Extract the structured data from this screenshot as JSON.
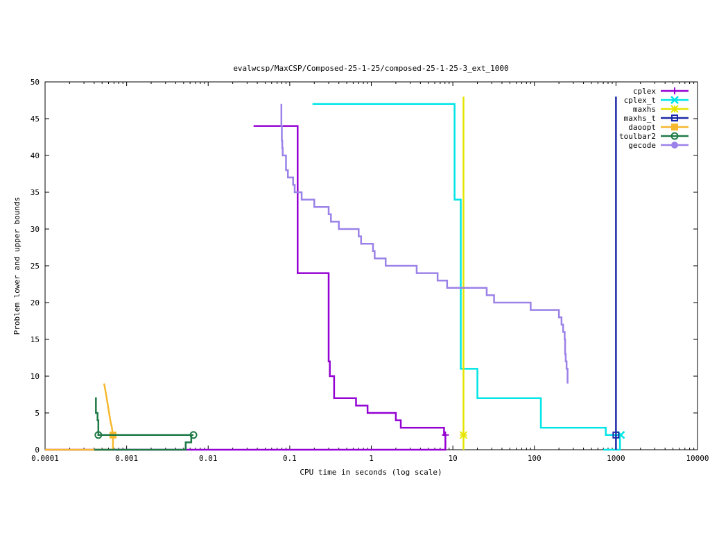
{
  "chart_data": {
    "type": "line",
    "title": "evalwcsp/MaxCSP/Composed-25-1-25/composed-25-1-25-3_ext_1000",
    "xlabel": "CPU time in seconds (log scale)",
    "ylabel": "Problem lower and upper bounds",
    "xscale": "log",
    "xlim": [
      0.0001,
      10000
    ],
    "ylim": [
      0,
      50
    ],
    "xticks": [
      {
        "value": 0.0001,
        "label": "0.0001"
      },
      {
        "value": 0.001,
        "label": "0.001"
      },
      {
        "value": 0.01,
        "label": "0.01"
      },
      {
        "value": 0.1,
        "label": "0.1"
      },
      {
        "value": 1,
        "label": "1"
      },
      {
        "value": 10,
        "label": "10"
      },
      {
        "value": 100,
        "label": "100"
      },
      {
        "value": 1000,
        "label": "1000"
      },
      {
        "value": 10000,
        "label": "10000"
      }
    ],
    "yticks": [
      {
        "value": 0,
        "label": "0"
      },
      {
        "value": 5,
        "label": "5"
      },
      {
        "value": 10,
        "label": "10"
      },
      {
        "value": 15,
        "label": "15"
      },
      {
        "value": 20,
        "label": "20"
      },
      {
        "value": 25,
        "label": "25"
      },
      {
        "value": 30,
        "label": "30"
      },
      {
        "value": 35,
        "label": "35"
      },
      {
        "value": 40,
        "label": "40"
      },
      {
        "value": 45,
        "label": "45"
      },
      {
        "value": 50,
        "label": "50"
      }
    ],
    "grid": false,
    "legend_position": "top-right",
    "series": [
      {
        "name": "cplex",
        "color": "#9400d3",
        "marker": "plus",
        "upper": [
          [
            0.036,
            44
          ],
          [
            0.125,
            44
          ],
          [
            0.125,
            24
          ],
          [
            0.3,
            24
          ],
          [
            0.3,
            12
          ],
          [
            0.31,
            12
          ],
          [
            0.31,
            10
          ],
          [
            0.35,
            10
          ],
          [
            0.35,
            7
          ],
          [
            0.65,
            7
          ],
          [
            0.65,
            6
          ],
          [
            0.9,
            6
          ],
          [
            0.9,
            5
          ],
          [
            2.0,
            5
          ],
          [
            2.0,
            4
          ],
          [
            2.3,
            4
          ],
          [
            2.3,
            3
          ],
          [
            7.8,
            3
          ],
          [
            7.8,
            2
          ],
          [
            8.1,
            2
          ]
        ],
        "lower": [
          [
            0.0001,
            0
          ],
          [
            8.1,
            0
          ],
          [
            8.1,
            2
          ]
        ],
        "final": [
          8.1,
          2
        ]
      },
      {
        "name": "cplex_t",
        "color": "#00e5e5",
        "marker": "x",
        "upper": [
          [
            0.19,
            47
          ],
          [
            10.5,
            47
          ],
          [
            10.5,
            34
          ],
          [
            12.5,
            34
          ],
          [
            12.5,
            11
          ],
          [
            20,
            11
          ],
          [
            20,
            7
          ],
          [
            120,
            7
          ],
          [
            120,
            3
          ],
          [
            750,
            3
          ],
          [
            750,
            2
          ],
          [
            1150,
            2
          ]
        ],
        "lower": [
          [
            700,
            0
          ],
          [
            1120,
            0
          ],
          [
            1120,
            2
          ]
        ],
        "final": [
          1150,
          2
        ]
      },
      {
        "name": "maxhs",
        "color": "#e5e500",
        "marker": "star",
        "upper": [
          [
            13.5,
            48
          ],
          [
            13.5,
            2
          ]
        ],
        "lower": [
          [
            13.5,
            0
          ],
          [
            13.5,
            2
          ]
        ],
        "final": [
          13.5,
          2
        ]
      },
      {
        "name": "maxhs_t",
        "color": "#1a29a6",
        "marker": "square",
        "upper": [
          [
            1000,
            48
          ],
          [
            1000,
            2
          ]
        ],
        "lower": [
          [
            1000,
            0
          ],
          [
            1000,
            2
          ]
        ],
        "final": [
          1000,
          2
        ]
      },
      {
        "name": "daoopt",
        "color": "#f5b82e",
        "marker": "filled-square",
        "upper": [
          [
            0.00053,
            9
          ],
          [
            0.00055,
            8
          ],
          [
            0.00057,
            7
          ],
          [
            0.00059,
            6
          ],
          [
            0.00061,
            5
          ],
          [
            0.00063,
            4
          ],
          [
            0.00066,
            3
          ],
          [
            0.00068,
            2
          ]
        ],
        "lower": [
          [
            0.0001,
            0
          ],
          [
            0.00068,
            0
          ],
          [
            0.00068,
            2
          ]
        ],
        "final": [
          0.00068,
          2
        ]
      },
      {
        "name": "toulbar2",
        "color": "#1e7a46",
        "marker": "circle",
        "upper": [
          [
            0.00041,
            7
          ],
          [
            0.00042,
            7
          ],
          [
            0.00042,
            5
          ],
          [
            0.00044,
            5
          ],
          [
            0.00044,
            4
          ],
          [
            0.00045,
            4
          ],
          [
            0.00045,
            2
          ],
          [
            0.0066,
            2
          ]
        ],
        "lower": [
          [
            0.0004,
            0
          ],
          [
            0.0053,
            0
          ],
          [
            0.0053,
            1
          ],
          [
            0.0062,
            1
          ],
          [
            0.0062,
            2
          ],
          [
            0.0066,
            2
          ]
        ],
        "final": [
          0.0066,
          2
        ],
        "extra_points": [
          [
            0.00045,
            2
          ]
        ]
      },
      {
        "name": "gecode",
        "color": "#9b82e8",
        "marker": "filled-circle",
        "upper": [
          [
            0.079,
            47
          ],
          [
            0.079,
            44
          ],
          [
            0.08,
            44
          ],
          [
            0.08,
            42
          ],
          [
            0.081,
            42
          ],
          [
            0.081,
            41
          ],
          [
            0.082,
            41
          ],
          [
            0.082,
            40
          ],
          [
            0.09,
            40
          ],
          [
            0.09,
            38
          ],
          [
            0.095,
            38
          ],
          [
            0.095,
            37
          ],
          [
            0.11,
            37
          ],
          [
            0.11,
            36
          ],
          [
            0.115,
            36
          ],
          [
            0.115,
            35
          ],
          [
            0.14,
            35
          ],
          [
            0.14,
            34
          ],
          [
            0.2,
            34
          ],
          [
            0.2,
            33
          ],
          [
            0.3,
            33
          ],
          [
            0.3,
            32
          ],
          [
            0.32,
            32
          ],
          [
            0.32,
            31
          ],
          [
            0.4,
            31
          ],
          [
            0.4,
            30
          ],
          [
            0.7,
            30
          ],
          [
            0.7,
            29
          ],
          [
            0.75,
            29
          ],
          [
            0.75,
            28
          ],
          [
            1.05,
            28
          ],
          [
            1.05,
            27
          ],
          [
            1.1,
            27
          ],
          [
            1.1,
            26
          ],
          [
            1.5,
            26
          ],
          [
            1.5,
            25
          ],
          [
            3.6,
            25
          ],
          [
            3.6,
            24
          ],
          [
            6.5,
            24
          ],
          [
            6.5,
            23
          ],
          [
            8.5,
            23
          ],
          [
            8.5,
            22
          ],
          [
            26,
            22
          ],
          [
            26,
            21
          ],
          [
            32,
            21
          ],
          [
            32,
            20
          ],
          [
            90,
            20
          ],
          [
            90,
            19
          ],
          [
            200,
            19
          ],
          [
            200,
            18
          ],
          [
            215,
            18
          ],
          [
            215,
            17
          ],
          [
            225,
            17
          ],
          [
            225,
            16
          ],
          [
            235,
            16
          ],
          [
            235,
            15
          ],
          [
            238,
            15
          ],
          [
            238,
            13
          ],
          [
            242,
            13
          ],
          [
            242,
            12
          ],
          [
            248,
            12
          ],
          [
            248,
            11
          ],
          [
            255,
            11
          ],
          [
            255,
            9
          ]
        ],
        "lower": []
      }
    ]
  }
}
